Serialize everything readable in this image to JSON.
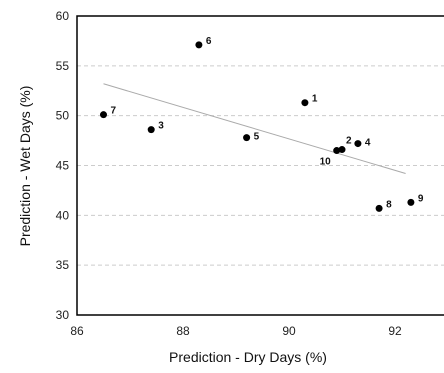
{
  "chart_data": {
    "type": "scatter",
    "title": "",
    "xlabel": "Prediction - Dry Days (%)",
    "ylabel": "Prediction - Wet Days (%)",
    "xlim": [
      86,
      93
    ],
    "ylim": [
      30,
      60
    ],
    "x_ticks": [
      "86",
      "88",
      "90",
      "92"
    ],
    "y_ticks": [
      "30",
      "35",
      "40",
      "45",
      "50",
      "55",
      "60"
    ],
    "x_tick_values": [
      86,
      88,
      90,
      92
    ],
    "y_tick_values": [
      30,
      35,
      40,
      45,
      50,
      55,
      60
    ],
    "grid": "horizontal dashed",
    "points": [
      {
        "label": "1",
        "x": 90.3,
        "y": 51.3
      },
      {
        "label": "2",
        "x": 91.0,
        "y": 46.6
      },
      {
        "label": "3",
        "x": 87.4,
        "y": 48.6
      },
      {
        "label": "4",
        "x": 91.3,
        "y": 47.2
      },
      {
        "label": "5",
        "x": 89.2,
        "y": 47.8
      },
      {
        "label": "6",
        "x": 88.3,
        "y": 57.1
      },
      {
        "label": "7",
        "x": 86.5,
        "y": 50.1
      },
      {
        "label": "8",
        "x": 91.7,
        "y": 40.7
      },
      {
        "label": "9",
        "x": 92.3,
        "y": 41.3
      },
      {
        "label": "10",
        "x": 90.9,
        "y": 46.5
      }
    ],
    "trendline": {
      "x": [
        86.5,
        92.2
      ],
      "y": [
        53.2,
        44.2
      ]
    },
    "colors": {
      "points": "#000000",
      "trend": "#aaaaaa",
      "grid": "#cccccc",
      "frame": "#000000"
    }
  }
}
